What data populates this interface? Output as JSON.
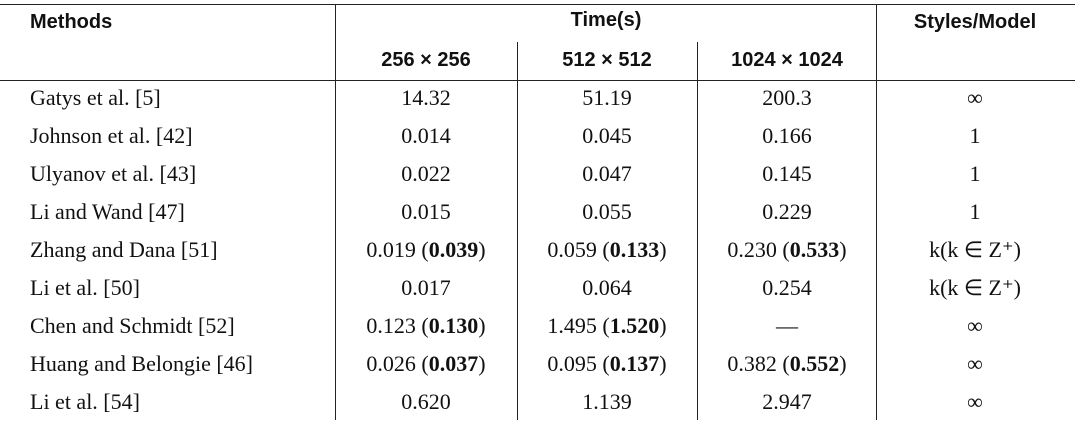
{
  "header": {
    "methods": "Methods",
    "time": "Time(s)",
    "styles": "Styles/Model",
    "sizes": [
      "256 × 256",
      "512 × 512",
      "1024 × 1024"
    ]
  },
  "rows": [
    [
      "Gatys et al. [5]",
      "14.32",
      "51.19",
      "200.3",
      "∞"
    ],
    [
      "Johnson et al. [42]",
      "0.014",
      "0.045",
      "0.166",
      "1"
    ],
    [
      "Ulyanov et al. [43]",
      "0.022",
      "0.047",
      "0.145",
      "1"
    ],
    [
      "Li and Wand [47]",
      "0.015",
      "0.055",
      "0.229",
      "1"
    ],
    [
      "Zhang and Dana [51]",
      [
        "0.019 (",
        {
          "bold": "0.039"
        },
        ")"
      ],
      [
        "0.059 (",
        {
          "bold": "0.133"
        },
        ")"
      ],
      [
        "0.230 (",
        {
          "bold": "0.533"
        },
        ")"
      ],
      "k(k ∈ Z⁺)"
    ],
    [
      "Li et al. [50]",
      "0.017",
      "0.064",
      "0.254",
      "k(k ∈ Z⁺)"
    ],
    [
      "Chen and Schmidt [52]",
      [
        "0.123 (",
        {
          "bold": "0.130"
        },
        ")"
      ],
      [
        "1.495 (",
        {
          "bold": "1.520"
        },
        ")"
      ],
      "—",
      "∞"
    ],
    [
      "Huang and Belongie [46]",
      [
        "0.026 (",
        {
          "bold": "0.037"
        },
        ")"
      ],
      [
        "0.095 (",
        {
          "bold": "0.137"
        },
        ")"
      ],
      [
        "0.382 (",
        {
          "bold": "0.552"
        },
        ")"
      ],
      "∞"
    ],
    [
      "Li et al. [54]",
      "0.620",
      "1.139",
      "2.947",
      "∞"
    ]
  ]
}
